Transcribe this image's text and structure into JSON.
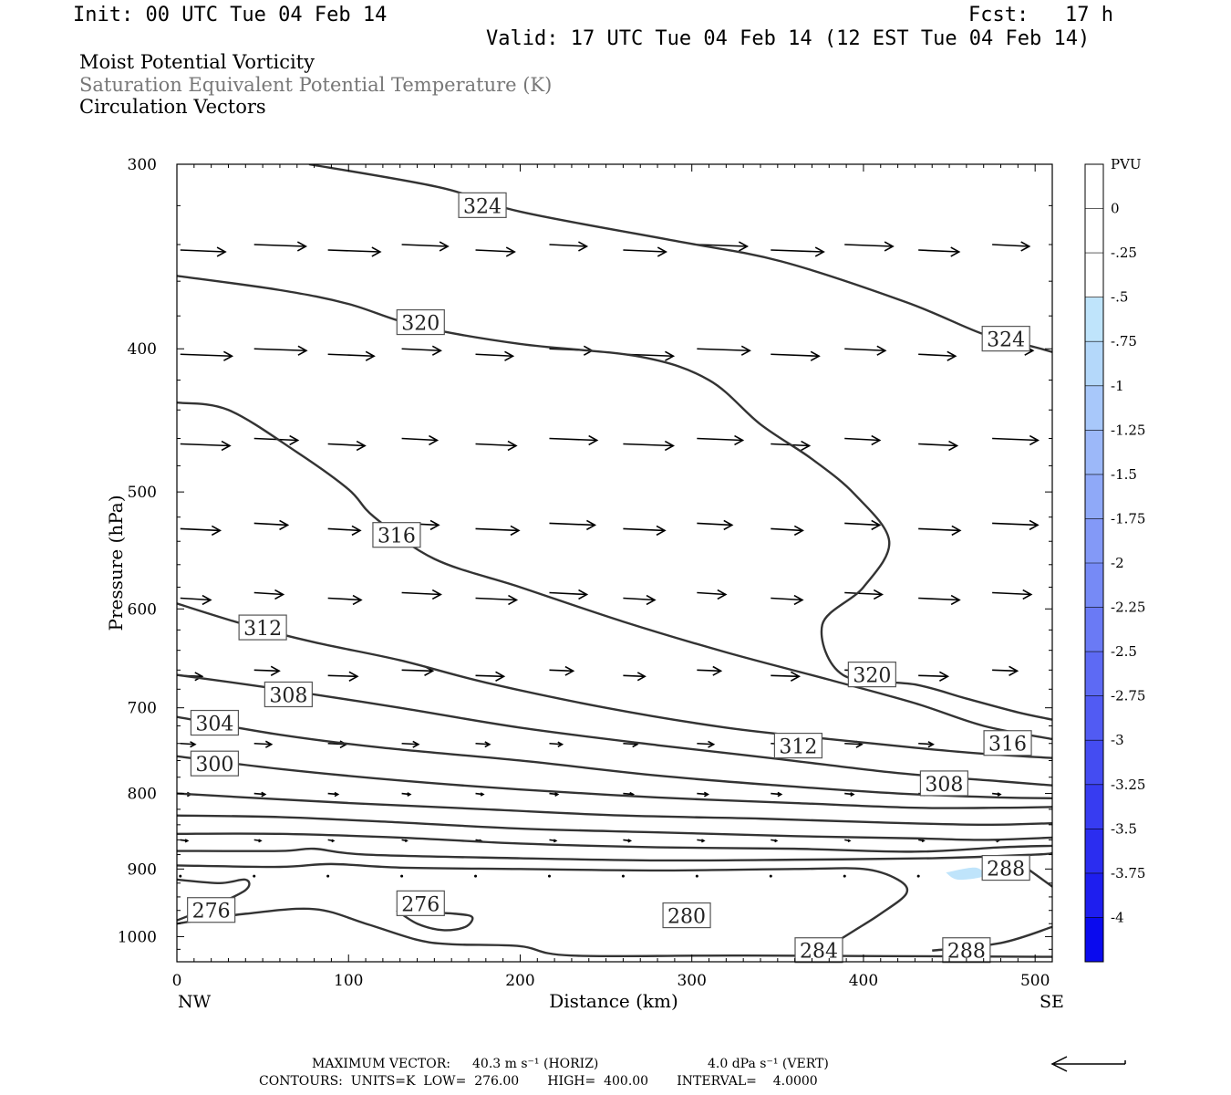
{
  "header": {
    "init": "Init: 00 UTC Tue 04 Feb 14",
    "fcst": "Fcst:   17 h",
    "valid": "Valid: 17 UTC Tue 04 Feb 14 (12 EST Tue 04 Feb 14)",
    "line1": "Moist Potential Vorticity",
    "line2": "Saturation Equivalent Potential Temperature (K)",
    "line3": "Circulation Vectors"
  },
  "footer": {
    "max_vector_label": "MAXIMUM VECTOR:",
    "max_horiz": "40.3 m s⁻¹ (HORIZ)",
    "max_vert": "4.0 dPa s⁻¹ (VERT)",
    "contours": "CONTOURS:  UNITS=K  LOW=  276.00       HIGH=  400.00       INTERVAL=    4.0000"
  },
  "colors": {
    "contour": "#333333",
    "frame": "#000000",
    "shade_light": "#bfe4fb",
    "shade_mid": "#a8c8fa"
  },
  "chart_data": {
    "type": "contour",
    "xlabel": "Distance (km)",
    "ylabel": "Pressure (hPa)",
    "xlim": [
      0,
      510
    ],
    "ylim": [
      1040,
      300
    ],
    "y_scale": "log",
    "x_ticks": [
      0,
      100,
      200,
      300,
      400,
      500
    ],
    "y_ticks": [
      300,
      400,
      500,
      600,
      700,
      800,
      900,
      1000
    ],
    "x_end_labels": {
      "left": "NW",
      "right": "SE"
    },
    "colorbar": {
      "label": "PVU",
      "levels": [
        "0",
        "-.25",
        "-.5",
        "-.75",
        "-1",
        "-1.25",
        "-1.5",
        "-1.75",
        "-2",
        "-2.25",
        "-2.5",
        "-2.75",
        "-3",
        "-3.25",
        "-3.5",
        "-3.75",
        "-4"
      ],
      "colors": [
        "#ffffff",
        "#ffffff",
        "#bfe4fb",
        "#b4d8fa",
        "#a8c8fa",
        "#9cb8f9",
        "#8fa9f8",
        "#8399f7",
        "#768af6",
        "#6a7af5",
        "#5d6af4",
        "#515bf3",
        "#444cf2",
        "#373cf1",
        "#2b2df0",
        "#1e1eef",
        "#0a0aee"
      ]
    },
    "contour_labels": [
      {
        "text": "324",
        "x": 178,
        "p": 320
      },
      {
        "text": "324",
        "x": 483,
        "p": 394
      },
      {
        "text": "320",
        "x": 142,
        "p": 384
      },
      {
        "text": "320",
        "x": 405,
        "p": 665
      },
      {
        "text": "316",
        "x": 128,
        "p": 535
      },
      {
        "text": "316",
        "x": 484,
        "p": 740
      },
      {
        "text": "312",
        "x": 50,
        "p": 618
      },
      {
        "text": "312",
        "x": 362,
        "p": 743
      },
      {
        "text": "308",
        "x": 65,
        "p": 686
      },
      {
        "text": "308",
        "x": 447,
        "p": 788
      },
      {
        "text": "304",
        "x": 22,
        "p": 717
      },
      {
        "text": "300",
        "x": 22,
        "p": 764
      },
      {
        "text": "276",
        "x": 20,
        "p": 960
      },
      {
        "text": "276",
        "x": 142,
        "p": 950
      },
      {
        "text": "280",
        "x": 297,
        "p": 968
      },
      {
        "text": "284",
        "x": 374,
        "p": 1022
      },
      {
        "text": "288",
        "x": 460,
        "p": 1022
      },
      {
        "text": "288",
        "x": 483,
        "p": 899
      }
    ],
    "contours": [
      {
        "level": 324,
        "points": [
          [
            77,
            300
          ],
          [
            153,
            311
          ],
          [
            200,
            323
          ],
          [
            290,
            338
          ],
          [
            352,
            349
          ],
          [
            425,
            372
          ],
          [
            470,
            391
          ],
          [
            500,
            399
          ],
          [
            510,
            402
          ]
        ]
      },
      {
        "level": 320,
        "points": [
          [
            0,
            357
          ],
          [
            60,
            365
          ],
          [
            100,
            373
          ],
          [
            140,
            386
          ],
          [
            200,
            397
          ],
          [
            270,
            405
          ],
          [
            310,
            420
          ],
          [
            340,
            450
          ],
          [
            370,
            475
          ],
          [
            395,
            502
          ],
          [
            415,
            540
          ],
          [
            400,
            580
          ],
          [
            376,
            615
          ],
          [
            388,
            665
          ],
          [
            430,
            675
          ],
          [
            460,
            690
          ],
          [
            490,
            705
          ],
          [
            510,
            713
          ]
        ]
      },
      {
        "level": 316,
        "points": [
          [
            0,
            435
          ],
          [
            30,
            440
          ],
          [
            70,
            470
          ],
          [
            100,
            498
          ],
          [
            115,
            520
          ],
          [
            150,
            555
          ],
          [
            200,
            580
          ],
          [
            260,
            612
          ],
          [
            320,
            642
          ],
          [
            380,
            670
          ],
          [
            430,
            695
          ],
          [
            470,
            720
          ],
          [
            510,
            735
          ]
        ]
      },
      {
        "level": 312,
        "points": [
          [
            0,
            595
          ],
          [
            40,
            615
          ],
          [
            80,
            632
          ],
          [
            130,
            650
          ],
          [
            180,
            673
          ],
          [
            250,
            700
          ],
          [
            320,
            722
          ],
          [
            380,
            735
          ],
          [
            430,
            745
          ],
          [
            470,
            752
          ],
          [
            510,
            757
          ]
        ]
      },
      {
        "level": 308,
        "points": [
          [
            0,
            665
          ],
          [
            60,
            680
          ],
          [
            130,
            700
          ],
          [
            200,
            722
          ],
          [
            280,
            742
          ],
          [
            350,
            758
          ],
          [
            420,
            775
          ],
          [
            480,
            785
          ],
          [
            510,
            790
          ]
        ]
      },
      {
        "level": 304,
        "points": [
          [
            0,
            710
          ],
          [
            60,
            730
          ],
          [
            120,
            745
          ],
          [
            200,
            760
          ],
          [
            280,
            778
          ],
          [
            350,
            790
          ],
          [
            420,
            800
          ],
          [
            480,
            805
          ],
          [
            510,
            806
          ]
        ]
      },
      {
        "level": 300,
        "points": [
          [
            0,
            755
          ],
          [
            60,
            770
          ],
          [
            130,
            784
          ],
          [
            200,
            795
          ],
          [
            280,
            805
          ],
          [
            360,
            812
          ],
          [
            430,
            818
          ],
          [
            480,
            818
          ],
          [
            510,
            817
          ]
        ]
      },
      {
        "level": 296,
        "points": [
          [
            0,
            800
          ],
          [
            40,
            805
          ],
          [
            100,
            812
          ],
          [
            180,
            820
          ],
          [
            260,
            828
          ],
          [
            340,
            832
          ],
          [
            410,
            837
          ],
          [
            470,
            840
          ],
          [
            510,
            838
          ]
        ]
      },
      {
        "level": 292,
        "points": [
          [
            0,
            828
          ],
          [
            60,
            830
          ],
          [
            130,
            837
          ],
          [
            200,
            845
          ],
          [
            280,
            850
          ],
          [
            360,
            855
          ],
          [
            430,
            858
          ],
          [
            470,
            860
          ],
          [
            510,
            857
          ]
        ]
      },
      {
        "level": 288,
        "points": [
          [
            0,
            852
          ],
          [
            60,
            852
          ],
          [
            130,
            857
          ],
          [
            200,
            865
          ],
          [
            280,
            870
          ],
          [
            360,
            872
          ],
          [
            430,
            876
          ],
          [
            480,
            870
          ],
          [
            510,
            868
          ]
        ]
      },
      {
        "level": 284,
        "points": [
          [
            0,
            875
          ],
          [
            60,
            875
          ],
          [
            80,
            872
          ],
          [
            110,
            880
          ],
          [
            200,
            885
          ],
          [
            280,
            888
          ],
          [
            360,
            887
          ],
          [
            440,
            885
          ],
          [
            500,
            880
          ],
          [
            510,
            878
          ]
        ]
      },
      {
        "level": 280,
        "points": [
          [
            0,
            895
          ],
          [
            60,
            897
          ],
          [
            90,
            893
          ],
          [
            130,
            898
          ],
          [
            200,
            900
          ],
          [
            280,
            902
          ],
          [
            360,
            900
          ],
          [
            400,
            900
          ],
          [
            420,
            915
          ],
          [
            425,
            935
          ],
          [
            410,
            965
          ],
          [
            395,
            990
          ],
          [
            380,
            1015
          ]
        ]
      },
      {
        "level": 276,
        "points": [
          [
            0,
            915
          ],
          [
            25,
            920
          ],
          [
            40,
            915
          ],
          [
            40,
            930
          ],
          [
            20,
            955
          ],
          [
            10,
            965
          ],
          [
            0,
            975
          ]
        ]
      },
      {
        "level": 276,
        "points": [
          [
            128,
            960
          ],
          [
            140,
            980
          ],
          [
            155,
            990
          ],
          [
            168,
            985
          ],
          [
            172,
            970
          ],
          [
            162,
            965
          ],
          [
            140,
            962
          ]
        ]
      },
      {
        "level": 280,
        "points": [
          [
            0,
            980
          ],
          [
            40,
            965
          ],
          [
            80,
            958
          ],
          [
            110,
            980
          ],
          [
            140,
            1005
          ],
          [
            160,
            1012
          ],
          [
            200,
            1015
          ],
          [
            230,
            1030
          ],
          [
            330,
            1030
          ],
          [
            510,
            1032
          ]
        ]
      },
      {
        "level": 288,
        "points": [
          [
            440,
            1022
          ],
          [
            480,
            1010
          ],
          [
            510,
            985
          ]
        ]
      },
      {
        "level": 288,
        "points": [
          [
            490,
            890
          ],
          [
            510,
            925
          ]
        ]
      }
    ],
    "shaded_regions": [
      {
        "level": "-.25",
        "points": [
          [
            65,
            900
          ],
          [
            80,
            905
          ],
          [
            90,
            925
          ],
          [
            85,
            945
          ],
          [
            70,
            935
          ],
          [
            60,
            920
          ]
        ]
      },
      {
        "level": "-.25",
        "points": [
          [
            70,
            945
          ],
          [
            90,
            940
          ],
          [
            100,
            960
          ],
          [
            95,
            985
          ],
          [
            80,
            975
          ],
          [
            65,
            960
          ]
        ]
      },
      {
        "level": "-.25",
        "points": [
          [
            315,
            960
          ],
          [
            340,
            955
          ],
          [
            355,
            975
          ],
          [
            345,
            995
          ],
          [
            320,
            995
          ],
          [
            312,
            980
          ]
        ]
      },
      {
        "level": "-.25",
        "points": [
          [
            375,
            905
          ],
          [
            390,
            900
          ],
          [
            395,
            940
          ],
          [
            380,
            950
          ],
          [
            368,
            935
          ]
        ]
      },
      {
        "level": "-.25",
        "points": [
          [
            430,
            895
          ],
          [
            460,
            880
          ],
          [
            490,
            872
          ],
          [
            510,
            870
          ],
          [
            510,
            970
          ],
          [
            480,
            975
          ],
          [
            450,
            968
          ],
          [
            420,
            965
          ],
          [
            395,
            960
          ],
          [
            400,
            940
          ],
          [
            425,
            935
          ],
          [
            430,
            915
          ]
        ]
      },
      {
        "level": "-.5",
        "points": [
          [
            448,
            905
          ],
          [
            465,
            898
          ],
          [
            470,
            910
          ],
          [
            455,
            915
          ]
        ]
      }
    ],
    "vector_scale_note": "arrows: horizontal component in m s-1, vertical in dPa s-1"
  }
}
